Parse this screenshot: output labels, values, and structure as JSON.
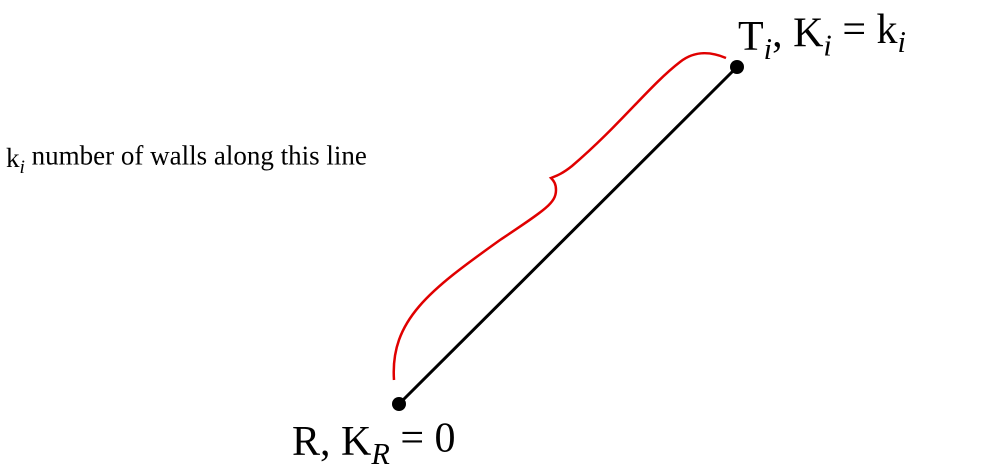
{
  "nodes": [
    {
      "label": [
        {
          "text": "T"
        },
        {
          "sub": "i"
        },
        {
          "text": ", K"
        },
        {
          "sub": "i"
        },
        {
          "text": " = k"
        },
        {
          "sub": "i"
        }
      ]
    },
    {
      "label": [
        {
          "text": "R, K"
        },
        {
          "sub": "R"
        },
        {
          "text": " = 0"
        }
      ]
    }
  ],
  "annotation": [
    {
      "text": "k"
    },
    {
      "sub": "i"
    },
    {
      "text": " number of walls along this line"
    }
  ]
}
